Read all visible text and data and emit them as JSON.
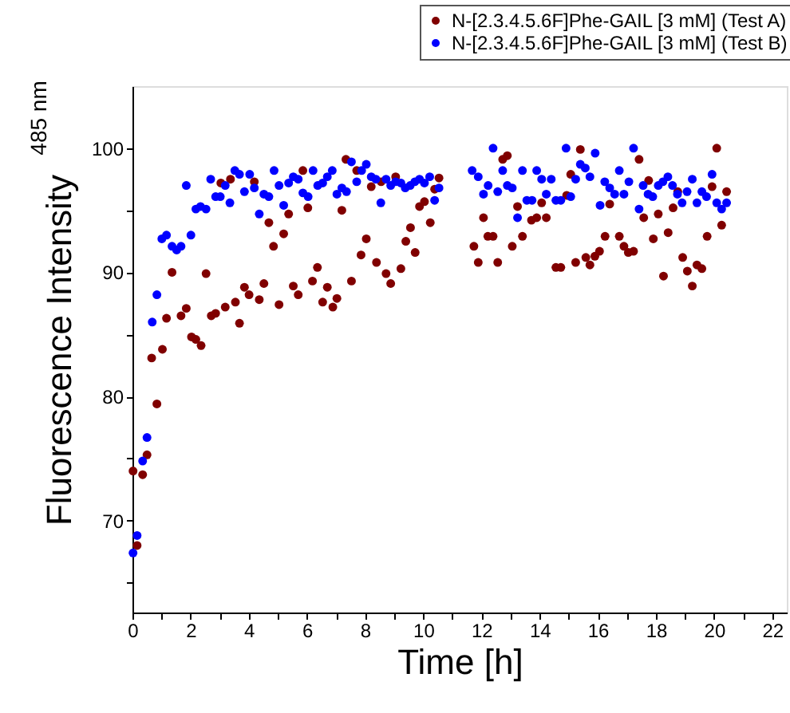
{
  "chart_data": {
    "type": "scatter",
    "xlabel": "Time [h]",
    "ylabel": "Fluorescence Intensity$_{485 nm}$",
    "xlim": [
      0,
      22.5
    ],
    "ylim": [
      62.6,
      105
    ],
    "xticks": [
      0,
      {
        "value": 1,
        "label": null
      },
      2,
      {
        "value": 3,
        "label": null
      },
      4,
      {
        "value": 5,
        "label": null
      },
      6,
      {
        "value": 7,
        "label": null
      },
      8,
      {
        "value": 9,
        "label": null
      },
      10,
      {
        "value": 11,
        "label": null
      },
      12,
      {
        "value": 13,
        "label": null
      },
      14,
      {
        "value": 15,
        "label": null
      },
      16,
      {
        "value": 17,
        "label": null
      },
      18,
      {
        "value": 19,
        "label": null
      },
      20,
      {
        "value": 21,
        "label": null
      },
      22
    ],
    "yticks": [
      {
        "value": 65,
        "label": null
      },
      70,
      {
        "value": 75,
        "label": null
      },
      80,
      {
        "value": 85,
        "label": null
      },
      90,
      {
        "value": 95,
        "label": null
      },
      100
    ],
    "grid": false,
    "legend": "top right",
    "marker": "circle",
    "series": [
      {
        "name": "N-[2.3.4.5.6F]Phe-GAIL [3 mM] (Test A)",
        "color": "#800000",
        "x": [
          0.02,
          0.16,
          0.35,
          0.5,
          0.66,
          0.84,
          1.03,
          1.17,
          1.36,
          1.67,
          1.85,
          2.03,
          2.18,
          2.36,
          2.53,
          2.71,
          2.86,
          3.04,
          3.19,
          3.37,
          3.54,
          3.68,
          3.85,
          4.01,
          4.19,
          4.36,
          4.52,
          4.69,
          4.85,
          5.04,
          5.2,
          5.37,
          5.53,
          5.7,
          5.86,
          6.03,
          6.19,
          6.36,
          6.54,
          6.7,
          6.89,
          7.03,
          7.2,
          7.34,
          7.53,
          7.71,
          7.86,
          8.04,
          8.21,
          8.39,
          8.55,
          8.72,
          8.88,
          9.05,
          9.23,
          9.4,
          9.56,
          9.72,
          9.87,
          10.04,
          10.24,
          10.39,
          10.54,
          11.74,
          11.89,
          12.07,
          12.22,
          12.4,
          12.56,
          12.73,
          12.89,
          13.06,
          13.24,
          13.41,
          13.72,
          13.9,
          14.07,
          14.23,
          14.56,
          14.73,
          14.93,
          15.07,
          15.24,
          15.4,
          15.59,
          15.73,
          15.9,
          16.06,
          16.25,
          16.41,
          16.74,
          16.9,
          17.05,
          17.23,
          17.42,
          17.58,
          17.75,
          17.91,
          18.08,
          18.26,
          18.42,
          18.59,
          18.75,
          18.92,
          19.08,
          19.25,
          19.41,
          19.58,
          19.76,
          19.93,
          20.09,
          20.26,
          20.43
        ],
        "values": [
          74.0,
          68.0,
          73.7,
          75.3,
          83.1,
          79.4,
          83.8,
          86.3,
          90.0,
          86.5,
          87.1,
          84.8,
          84.6,
          84.1,
          89.9,
          86.5,
          86.7,
          97.2,
          87.2,
          97.5,
          87.6,
          85.9,
          88.8,
          88.2,
          97.3,
          87.8,
          89.1,
          94.0,
          92.1,
          87.4,
          93.1,
          94.7,
          88.9,
          88.2,
          98.2,
          95.2,
          89.3,
          90.4,
          87.6,
          88.8,
          87.2,
          87.9,
          95.0,
          99.1,
          89.3,
          98.2,
          91.4,
          92.7,
          96.9,
          90.8,
          97.3,
          89.9,
          89.1,
          97.7,
          90.3,
          92.5,
          93.6,
          91.6,
          95.3,
          95.7,
          94.0,
          96.7,
          97.6,
          92.1,
          90.8,
          94.4,
          92.9,
          92.9,
          90.8,
          99.1,
          99.4,
          92.1,
          95.3,
          92.9,
          94.2,
          94.4,
          95.6,
          94.4,
          90.4,
          90.4,
          96.2,
          97.9,
          90.8,
          99.9,
          91.2,
          90.6,
          91.3,
          91.7,
          92.9,
          95.5,
          92.9,
          92.1,
          91.6,
          91.7,
          99.1,
          94.4,
          97.4,
          92.7,
          94.7,
          89.7,
          93.2,
          95.2,
          96.5,
          91.2,
          90.1,
          88.9,
          90.6,
          90.3,
          92.9,
          96.9,
          100.0,
          93.8,
          96.5
        ]
      },
      {
        "name": "N-[2.3.4.5.6F]Phe-GAIL [3 mM] (Test B)",
        "color": "#0000ff",
        "x": [
          0.02,
          0.16,
          0.35,
          0.5,
          0.68,
          0.84,
          1.01,
          1.17,
          1.36,
          1.52,
          1.67,
          1.85,
          2.01,
          2.18,
          2.34,
          2.53,
          2.69,
          2.86,
          3.02,
          3.19,
          3.35,
          3.52,
          3.68,
          3.85,
          4.03,
          4.19,
          4.36,
          4.52,
          4.69,
          4.87,
          5.04,
          5.2,
          5.37,
          5.53,
          5.7,
          5.86,
          6.04,
          6.21,
          6.37,
          6.54,
          6.7,
          6.87,
          7.03,
          7.2,
          7.36,
          7.53,
          7.71,
          7.88,
          8.04,
          8.21,
          8.37,
          8.54,
          8.72,
          8.88,
          9.05,
          9.23,
          9.38,
          9.55,
          9.71,
          9.87,
          10.04,
          10.22,
          10.39,
          10.54,
          11.68,
          11.89,
          12.07,
          12.23,
          12.4,
          12.56,
          12.73,
          12.89,
          13.06,
          13.24,
          13.41,
          13.56,
          13.74,
          13.9,
          14.07,
          14.23,
          14.4,
          14.56,
          14.73,
          14.91,
          15.07,
          15.24,
          15.4,
          15.57,
          15.73,
          15.91,
          16.08,
          16.24,
          16.41,
          16.58,
          16.74,
          16.9,
          17.07,
          17.23,
          17.42,
          17.56,
          17.73,
          17.89,
          18.08,
          18.24,
          18.41,
          18.57,
          18.74,
          18.9,
          19.07,
          19.25,
          19.41,
          19.58,
          19.74,
          19.93,
          20.09,
          20.26,
          20.43
        ],
        "values": [
          67.4,
          68.8,
          74.8,
          76.7,
          86.0,
          88.2,
          92.7,
          93.0,
          92.1,
          91.8,
          92.1,
          97.0,
          93.0,
          95.1,
          95.3,
          95.1,
          97.5,
          96.1,
          96.1,
          97.0,
          95.6,
          98.2,
          97.9,
          96.5,
          97.9,
          96.8,
          94.7,
          96.3,
          96.1,
          98.2,
          97.0,
          95.4,
          97.2,
          97.7,
          97.5,
          96.4,
          96.1,
          98.2,
          97.0,
          97.2,
          97.7,
          98.2,
          96.3,
          96.8,
          96.5,
          98.9,
          97.3,
          98.2,
          98.7,
          97.7,
          97.5,
          95.6,
          97.5,
          97.0,
          97.3,
          97.2,
          96.8,
          97.0,
          97.3,
          97.5,
          97.2,
          97.7,
          95.8,
          96.8,
          98.2,
          97.7,
          96.3,
          97.0,
          100.0,
          96.5,
          98.2,
          97.0,
          96.8,
          94.4,
          98.2,
          95.8,
          95.8,
          98.2,
          97.5,
          96.3,
          97.5,
          95.8,
          95.8,
          100.0,
          96.1,
          97.5,
          98.7,
          98.4,
          97.7,
          99.6,
          95.4,
          97.3,
          96.8,
          96.3,
          98.2,
          96.3,
          97.3,
          100.0,
          95.1,
          97.0,
          96.3,
          96.1,
          97.0,
          97.3,
          97.7,
          97.0,
          96.3,
          95.6,
          96.5,
          97.5,
          95.6,
          96.5,
          96.1,
          97.9,
          95.6,
          95.1,
          95.6
        ]
      }
    ]
  }
}
